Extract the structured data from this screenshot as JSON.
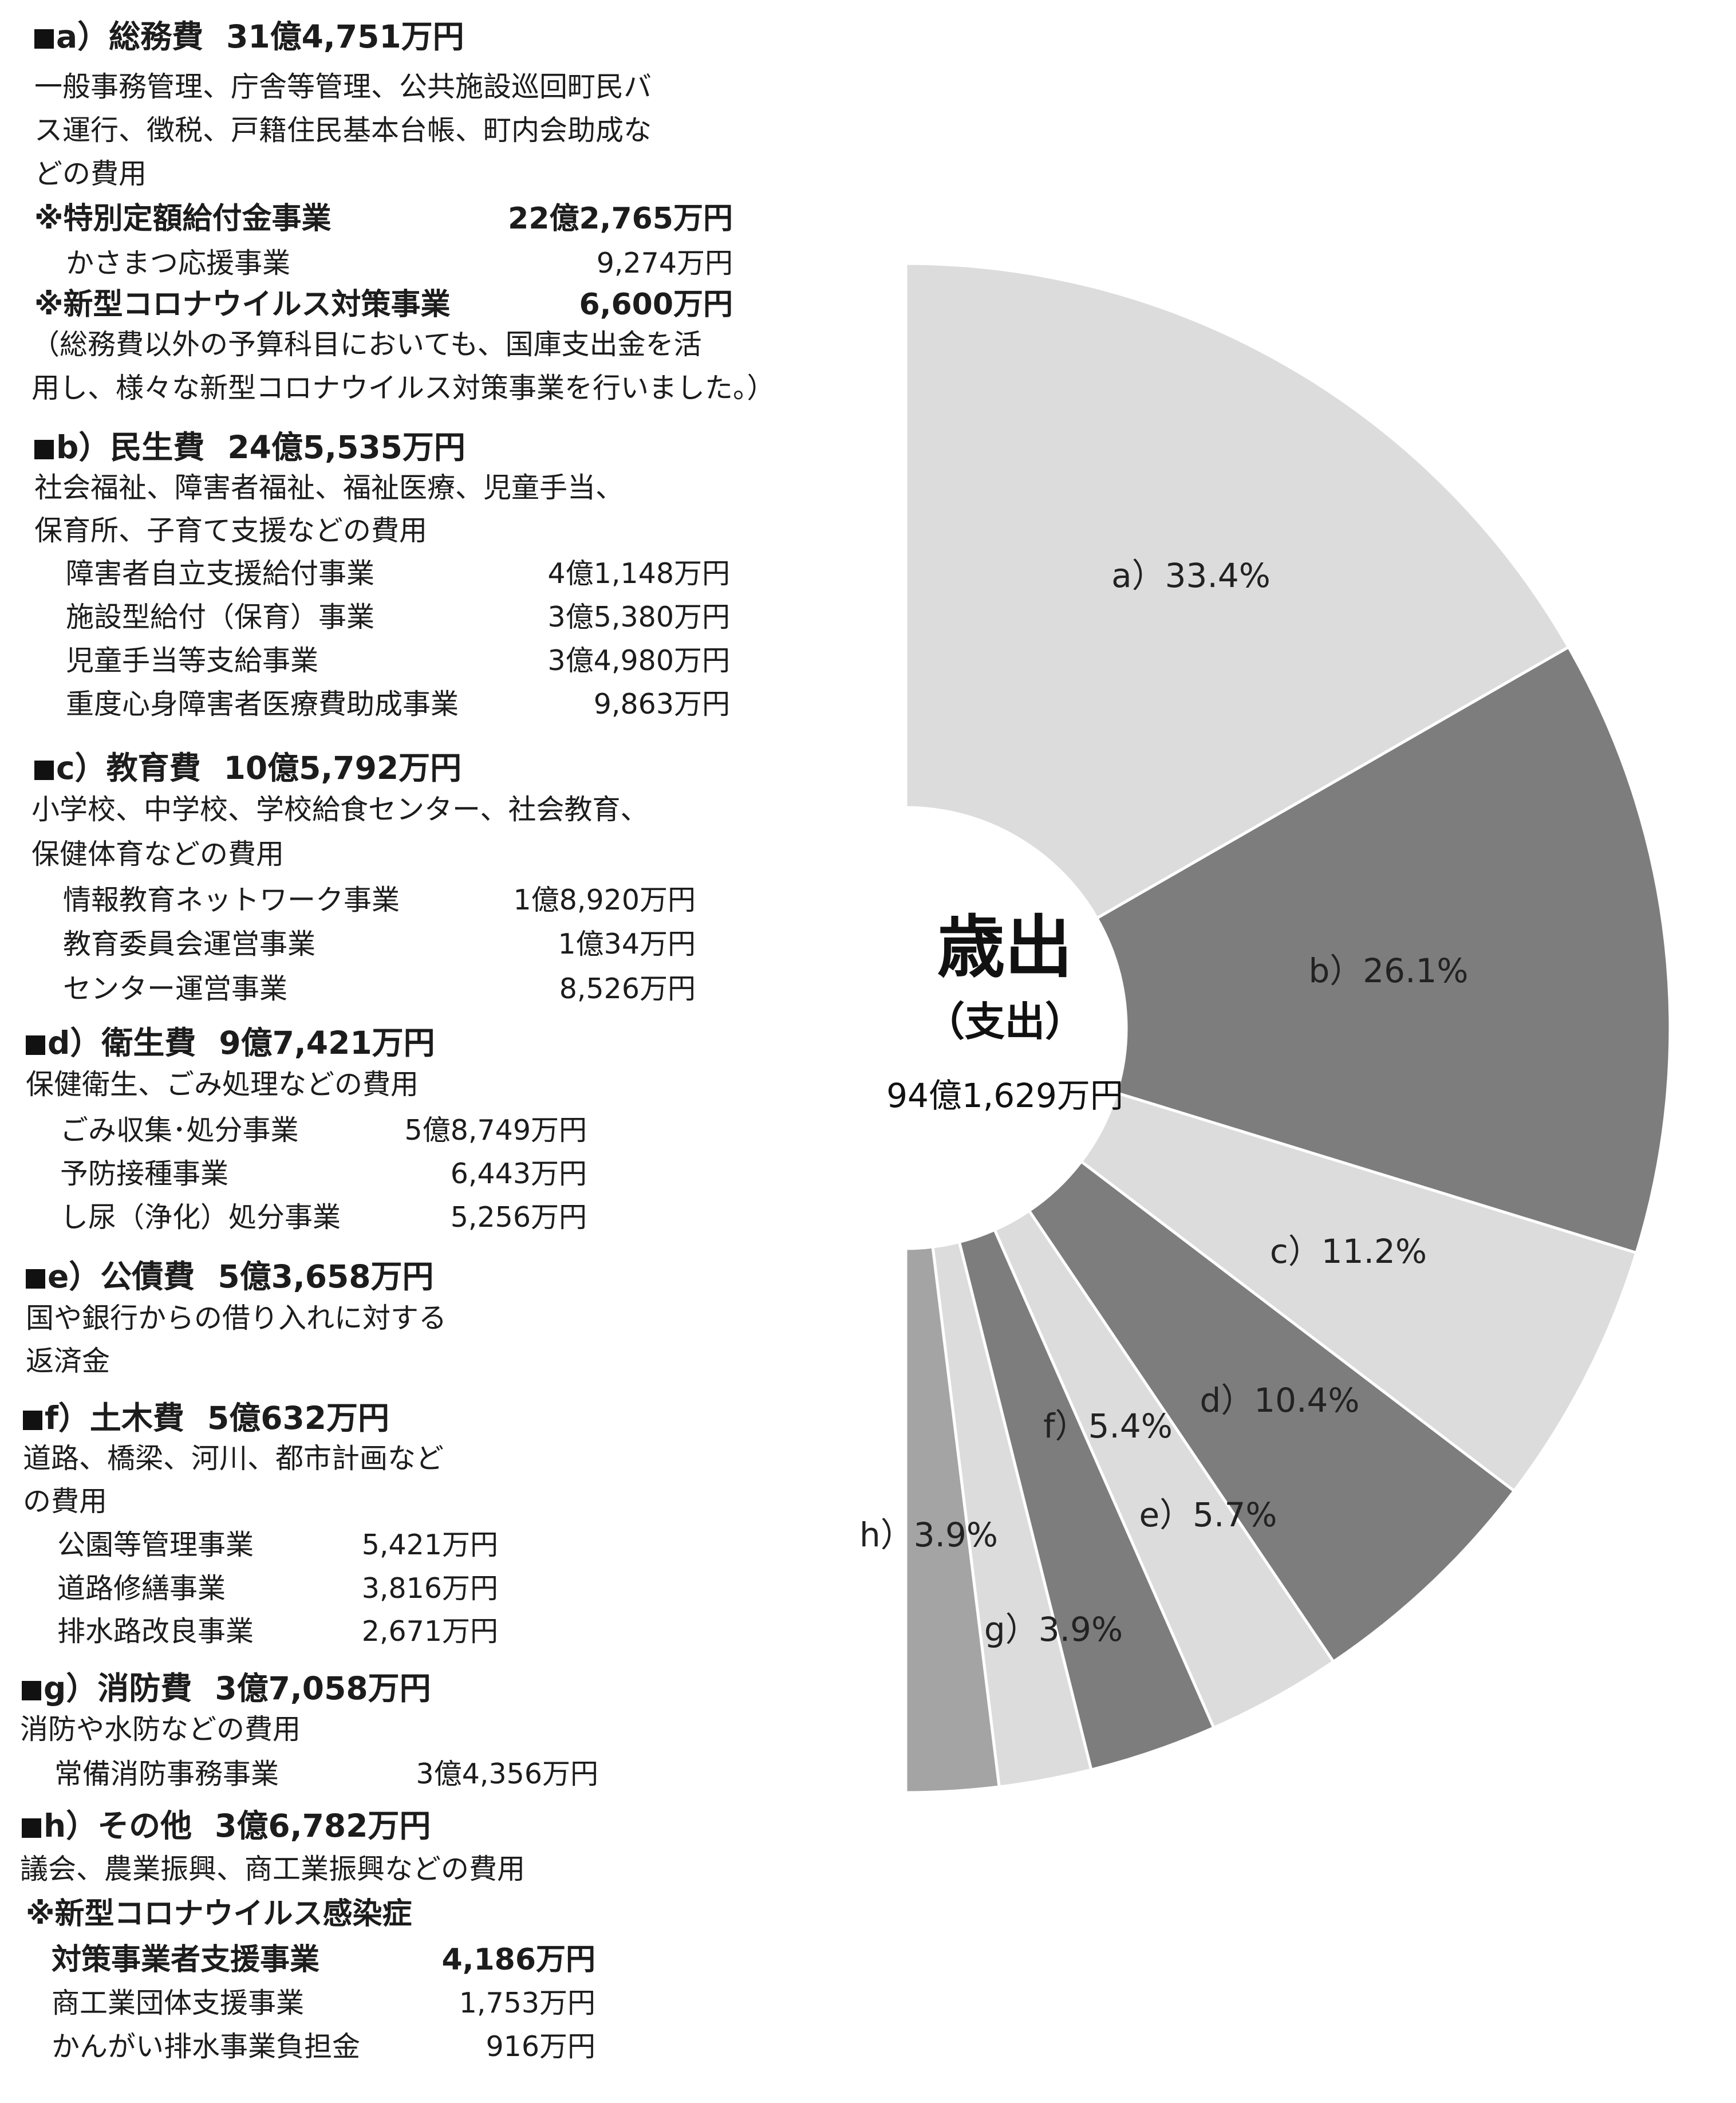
{
  "categories": [
    {
      "key": "a",
      "label": "a）総務費",
      "amount": "31億4,751万円",
      "desc": [
        "一般事務管理、庁舎等管理、公共施設巡回町民バ",
        "ス運行、徴税、戸籍住民基本台帳、町内会助成な",
        "どの費用"
      ],
      "items": [
        {
          "name": "※特別定額給付金事業",
          "amount": "22億2,765万円",
          "bold": true
        },
        {
          "name": "かさまつ応援事業",
          "amount": "9,274万円"
        },
        {
          "name": "※新型コロナウイルス対策事業",
          "amount": "6,600万円",
          "bold": true
        }
      ],
      "note": [
        "（総務費以外の予算科目においても、国庫支出金を活",
        "用し、様々な新型コロナウイルス対策事業を行いました。）"
      ]
    },
    {
      "key": "b",
      "label": "b）民生費",
      "amount": "24億5,535万円",
      "desc": [
        "社会福祉、障害者福祉、福祉医療、児童手当、",
        "保育所、子育て支援などの費用"
      ],
      "items": [
        {
          "name": "障害者自立支援給付事業",
          "amount": "4億1,148万円"
        },
        {
          "name": "施設型給付（保育）事業",
          "amount": "3億5,380万円"
        },
        {
          "name": "児童手当等支給事業",
          "amount": "3億4,980万円"
        },
        {
          "name": "重度心身障害者医療費助成事業",
          "amount": "9,863万円"
        }
      ]
    },
    {
      "key": "c",
      "label": "c）教育費",
      "amount": "10億5,792万円",
      "desc": [
        "小学校、中学校、学校給食センター、社会教育、",
        "保健体育などの費用"
      ],
      "items": [
        {
          "name": "情報教育ネットワーク事業",
          "amount": "1億8,920万円"
        },
        {
          "name": "教育委員会運営事業",
          "amount": "1億34万円"
        },
        {
          "name": "センター運営事業",
          "amount": "8,526万円"
        }
      ]
    },
    {
      "key": "d",
      "label": "d）衛生費",
      "amount": "9億7,421万円",
      "desc": [
        "保健衛生、ごみ処理などの費用"
      ],
      "items": [
        {
          "name": "ごみ収集･処分事業",
          "amount": "5億8,749万円"
        },
        {
          "name": "予防接種事業",
          "amount": "6,443万円"
        },
        {
          "name": "し尿（浄化）処分事業",
          "amount": "5,256万円"
        }
      ]
    },
    {
      "key": "e",
      "label": "e）公債費",
      "amount": "5億3,658万円",
      "desc": [
        "国や銀行からの借り入れに対する",
        "返済金"
      ],
      "items": []
    },
    {
      "key": "f",
      "label": "f）土木費",
      "amount": "5億632万円",
      "desc": [
        "道路、橋梁、河川、都市計画など",
        "の費用"
      ],
      "items": [
        {
          "name": "公園等管理事業",
          "amount": "5,421万円"
        },
        {
          "name": "道路修繕事業",
          "amount": "3,816万円"
        },
        {
          "name": "排水路改良事業",
          "amount": "2,671万円"
        }
      ]
    },
    {
      "key": "g",
      "label": "g）消防費",
      "amount": "3億7,058万円",
      "desc": [
        "消防や水防などの費用"
      ],
      "items": [
        {
          "name": "常備消防事務事業",
          "amount": "3億4,356万円"
        }
      ]
    },
    {
      "key": "h",
      "label": "h）その他",
      "amount": "3億6,782万円",
      "desc": [
        "議会、農業振興、商工業振興などの費用"
      ],
      "items": [
        {
          "name": "※新型コロナウイルス感染症",
          "amount": "",
          "bold": true
        },
        {
          "name": "対策事業者支援事業",
          "amount": "4,186万円",
          "bold": true
        },
        {
          "name": "商工業団体支援事業",
          "amount": "1,753万円"
        },
        {
          "name": "かんがい排水事業負担金",
          "amount": "916万円"
        }
      ]
    }
  ],
  "chart_data": {
    "type": "pie",
    "center_title": "歳出",
    "center_subtitle": "（支出）",
    "center_total": "94億1,629万円",
    "slices": [
      {
        "key": "a",
        "label": "a）33.4%",
        "value": 33.4,
        "color": "#dcdcdc"
      },
      {
        "key": "b",
        "label": "b）26.1%",
        "value": 26.1,
        "color": "#7d7d7d"
      },
      {
        "key": "c",
        "label": "c）11.2%",
        "value": 11.2,
        "color": "#dcdcdc"
      },
      {
        "key": "d",
        "label": "d）10.4%",
        "value": 10.4,
        "color": "#7d7d7d"
      },
      {
        "key": "e",
        "label": "e）5.7%",
        "value": 5.7,
        "color": "#dcdcdc"
      },
      {
        "key": "f",
        "label": "f）5.4%",
        "value": 5.4,
        "color": "#7d7d7d"
      },
      {
        "key": "g",
        "label": "g）3.9%",
        "value": 3.9,
        "color": "#dcdcdc"
      },
      {
        "key": "h",
        "label": "h）3.9%",
        "value": 3.9,
        "color": "#a4a4a4"
      }
    ]
  }
}
